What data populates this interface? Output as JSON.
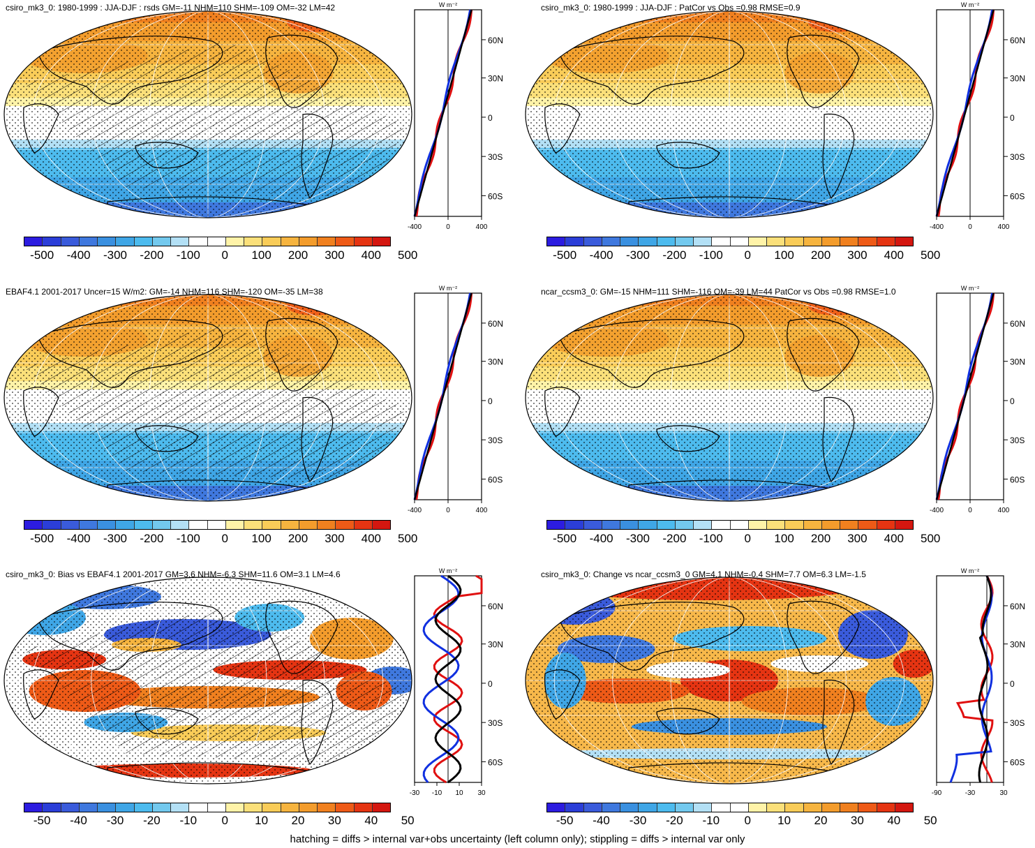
{
  "colorbar": {
    "colors": [
      "#2c1ce0",
      "#2b3ed8",
      "#3a5bdb",
      "#3f78de",
      "#3a90e0",
      "#3fa6e6",
      "#4dbbee",
      "#73c9ee",
      "#b3e0f5",
      "#ffffff",
      "#ffffff",
      "#fff3a8",
      "#fbe07a",
      "#f9cc58",
      "#f6b43f",
      "#f39c2c",
      "#f0801f",
      "#ee5a17",
      "#e53412",
      "#d41710"
    ],
    "labels_main": [
      "-500",
      "-400",
      "-300",
      "-200",
      "-100",
      "0",
      "100",
      "200",
      "300",
      "400",
      "500"
    ],
    "labels_diff": [
      "-50",
      "-40",
      "-30",
      "-20",
      "-10",
      "0",
      "10",
      "20",
      "30",
      "40",
      "50"
    ]
  },
  "units": "W m⁻²",
  "lat_labels": [
    "60N",
    "30N",
    "0",
    "30S",
    "60S"
  ],
  "panels": [
    {
      "id": "p1",
      "title": "csiro_mk3_0: 1980-1999 : JJA-DJF : rsds GM=-11 NHM=110 SHM=-109 OM=-32 LM=42",
      "cb": "labels_main",
      "prof_ticks": [
        "-400",
        "0",
        "400"
      ],
      "type": "main"
    },
    {
      "id": "p2",
      "title": "csiro_mk3_0: 1980-1999 : JJA-DJF : PatCor vs Obs =0.98 RMSE=0.9",
      "cb": "labels_main",
      "prof_ticks": [
        "-400",
        "0",
        "400"
      ],
      "type": "main"
    },
    {
      "id": "p3",
      "title": "EBAF4.1 2001-2017 Uncer=15 W/m2: GM=-14 NHM=116 SHM=-120 OM=-35 LM=38",
      "cb": "labels_main",
      "prof_ticks": [
        "-400",
        "0",
        "400"
      ],
      "type": "main"
    },
    {
      "id": "p4",
      "title": "ncar_ccsm3_0: GM=-15 NHM=111 SHM=-116 OM=-39 LM=44 PatCor vs Obs =0.98 RMSE=1.0",
      "cb": "labels_main",
      "prof_ticks": [
        "-400",
        "0",
        "400"
      ],
      "type": "main"
    },
    {
      "id": "p5",
      "title": "csiro_mk3_0: Bias vs EBAF4.1 2001-2017 GM=3.6 NHM=-6.3 SHM=11.6 OM=3.1 LM=4.6",
      "cb": "labels_diff",
      "prof_ticks": [
        "-30",
        "-10",
        "10",
        "30"
      ],
      "type": "bias"
    },
    {
      "id": "p6",
      "title": "csiro_mk3_0: Change vs ncar_ccsm3_0 GM=4.1 NHM=-0.4 SHM=7.7 OM=6.3 LM=-1.5",
      "cb": "labels_diff",
      "prof_ticks": [
        "-90",
        "-30",
        "30"
      ],
      "type": "change"
    }
  ],
  "footer": "hatching = diffs > internal var+obs uncertainty (left column only); stippling = diffs > internal var only"
}
